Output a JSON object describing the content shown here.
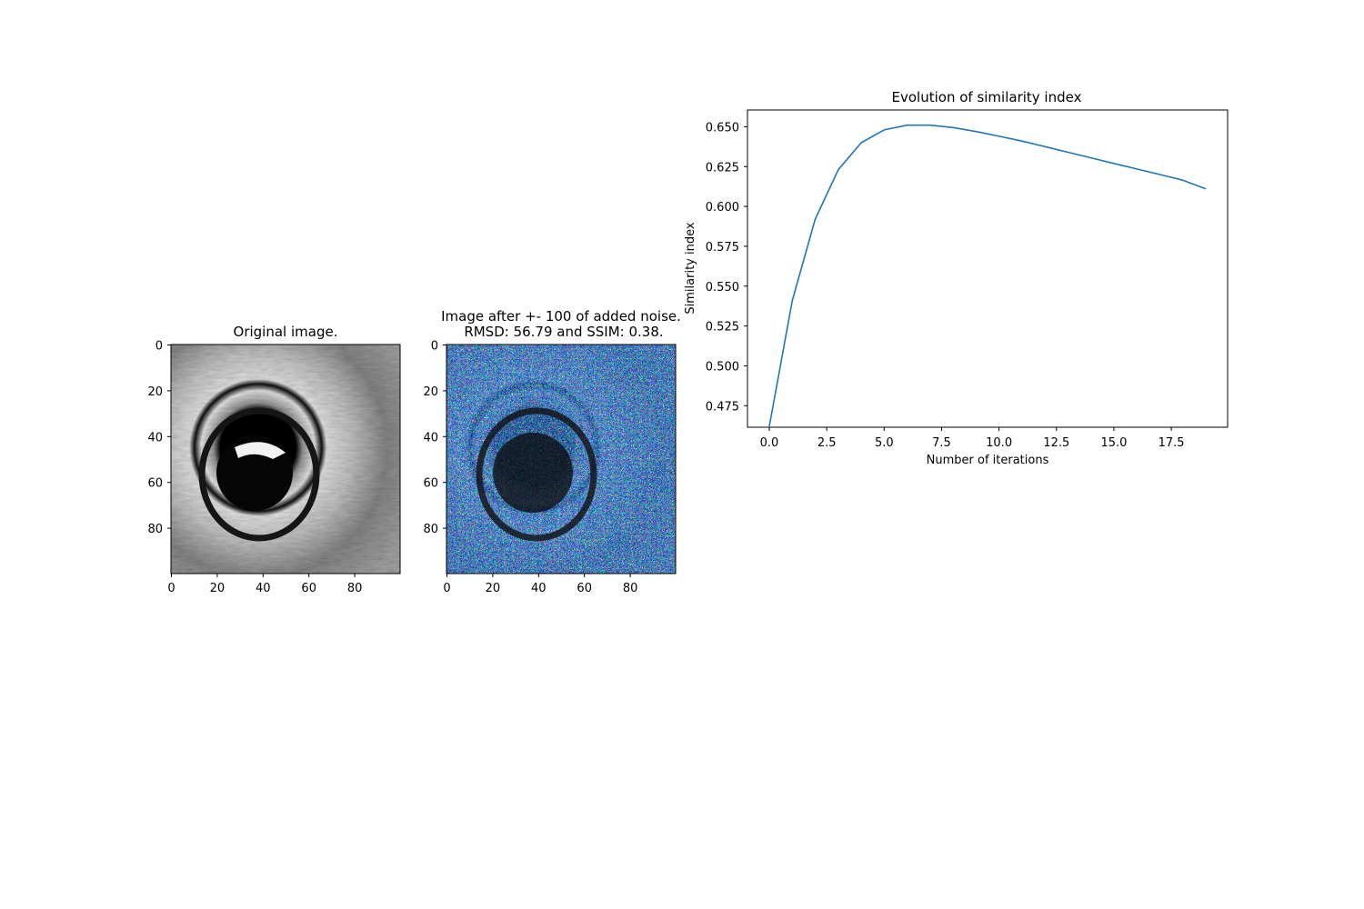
{
  "chart_data": [
    {
      "type": "image",
      "title": "Original image.",
      "xticks": [
        "0",
        "20",
        "40",
        "60",
        "80"
      ],
      "yticks": [
        "0",
        "20",
        "40",
        "60",
        "80"
      ],
      "xlim": [
        0,
        100
      ],
      "ylim": [
        100,
        0
      ],
      "colormap": "grayscale"
    },
    {
      "type": "image",
      "title_lines": [
        "Image after +- 100 of added noise.",
        "RMSD: 56.79 and SSIM: 0.38."
      ],
      "xticks": [
        "0",
        "20",
        "40",
        "60",
        "80"
      ],
      "yticks": [
        "0",
        "20",
        "40",
        "60",
        "80"
      ],
      "xlim": [
        0,
        100
      ],
      "ylim": [
        100,
        0
      ],
      "colormap": "rgb noise"
    },
    {
      "type": "line",
      "title": "Evolution of similarity index",
      "xlabel": "Number of iterations",
      "ylabel": "Similarity index",
      "xlim": [
        -0.95,
        19.95
      ],
      "ylim": [
        0.4615,
        0.6605
      ],
      "xticks": [
        0,
        2.5,
        5,
        7.5,
        10,
        12.5,
        15,
        17.5
      ],
      "xtick_labels": [
        "0.0",
        "2.5",
        "5.0",
        "7.5",
        "10.0",
        "12.5",
        "15.0",
        "17.5"
      ],
      "yticks": [
        0.475,
        0.5,
        0.525,
        0.55,
        0.575,
        0.6,
        0.625,
        0.65
      ],
      "ytick_labels": [
        "0.475",
        "0.500",
        "0.525",
        "0.550",
        "0.575",
        "0.600",
        "0.625",
        "0.650"
      ],
      "grid": false,
      "series": [
        {
          "color": "#1f77b4",
          "x": [
            0,
            1,
            2,
            3,
            4,
            5,
            6,
            7,
            8,
            9,
            10,
            11,
            12,
            13,
            14,
            15,
            16,
            17,
            18,
            19
          ],
          "values": [
            0.462,
            0.541,
            0.592,
            0.623,
            0.64,
            0.648,
            0.651,
            0.651,
            0.6495,
            0.647,
            0.644,
            0.641,
            0.6375,
            0.634,
            0.6305,
            0.627,
            0.6235,
            0.62,
            0.6165,
            0.611
          ]
        }
      ]
    }
  ]
}
